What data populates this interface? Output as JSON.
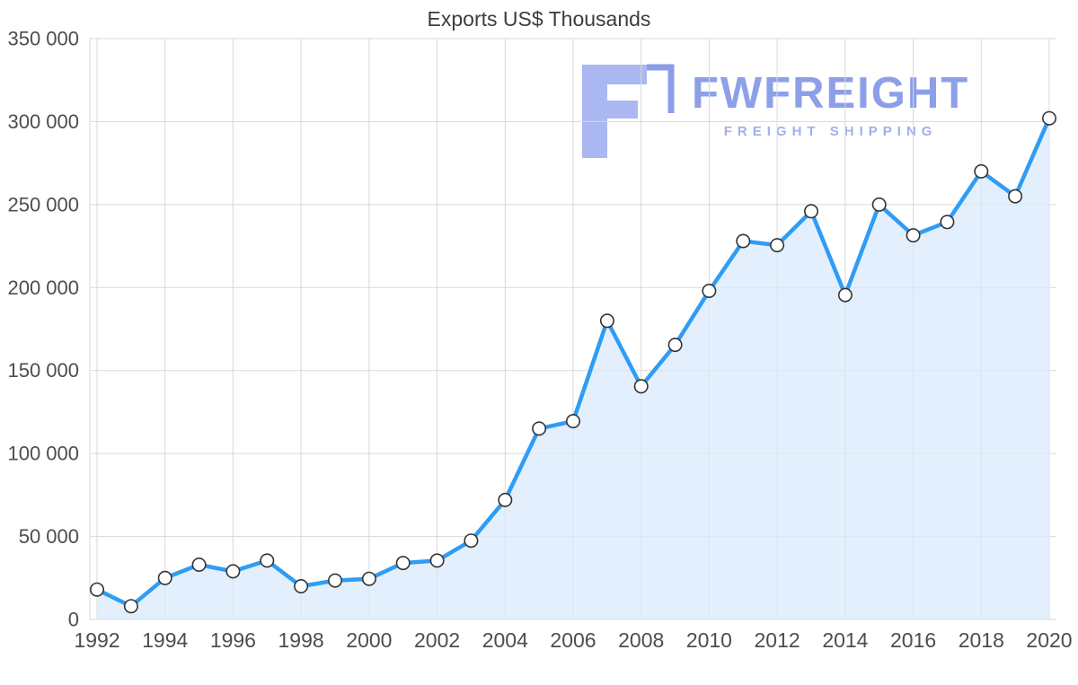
{
  "page": {
    "title": "Exports US$ Thousands"
  },
  "watermark": {
    "brand": "FWFREIGHT",
    "tagline": "FREIGHT SHIPPING",
    "brand_color": "#8d9fe9",
    "tagline_color": "#a3aeeb",
    "icon_fill": "#aab7f0",
    "icon_outline": "#8b9de9"
  },
  "chart_data": {
    "type": "area",
    "title": "Exports US$ Thousands",
    "xlabel": "",
    "ylabel": "",
    "x": [
      1992,
      1993,
      1994,
      1995,
      1996,
      1997,
      1998,
      1999,
      2000,
      2001,
      2002,
      2003,
      2004,
      2005,
      2006,
      2007,
      2008,
      2009,
      2010,
      2011,
      2012,
      2013,
      2014,
      2015,
      2016,
      2017,
      2018,
      2019,
      2020
    ],
    "values": [
      18000,
      8000,
      25000,
      33000,
      29000,
      35500,
      20000,
      23500,
      24500,
      34000,
      35500,
      47500,
      72000,
      115000,
      119500,
      180000,
      140500,
      165500,
      198000,
      228000,
      225500,
      246000,
      195500,
      250000,
      231500,
      239500,
      270000,
      255000,
      302000
    ],
    "ylim": [
      0,
      350000
    ],
    "y_ticks": [
      0,
      50000,
      100000,
      150000,
      200000,
      250000,
      300000,
      350000
    ],
    "x_ticks": [
      1992,
      1994,
      1996,
      1998,
      2000,
      2002,
      2004,
      2006,
      2008,
      2010,
      2012,
      2014,
      2016,
      2018,
      2020
    ],
    "grid": true,
    "legend": "none",
    "colors": {
      "line": "#2f9cf5",
      "fill": "#d9eafb",
      "marker_fill": "#ffffff",
      "marker_stroke": "#333333",
      "grid": "#d9d9d9",
      "axis_text": "#4d4d4d",
      "title_text": "#3d3d3d"
    }
  }
}
